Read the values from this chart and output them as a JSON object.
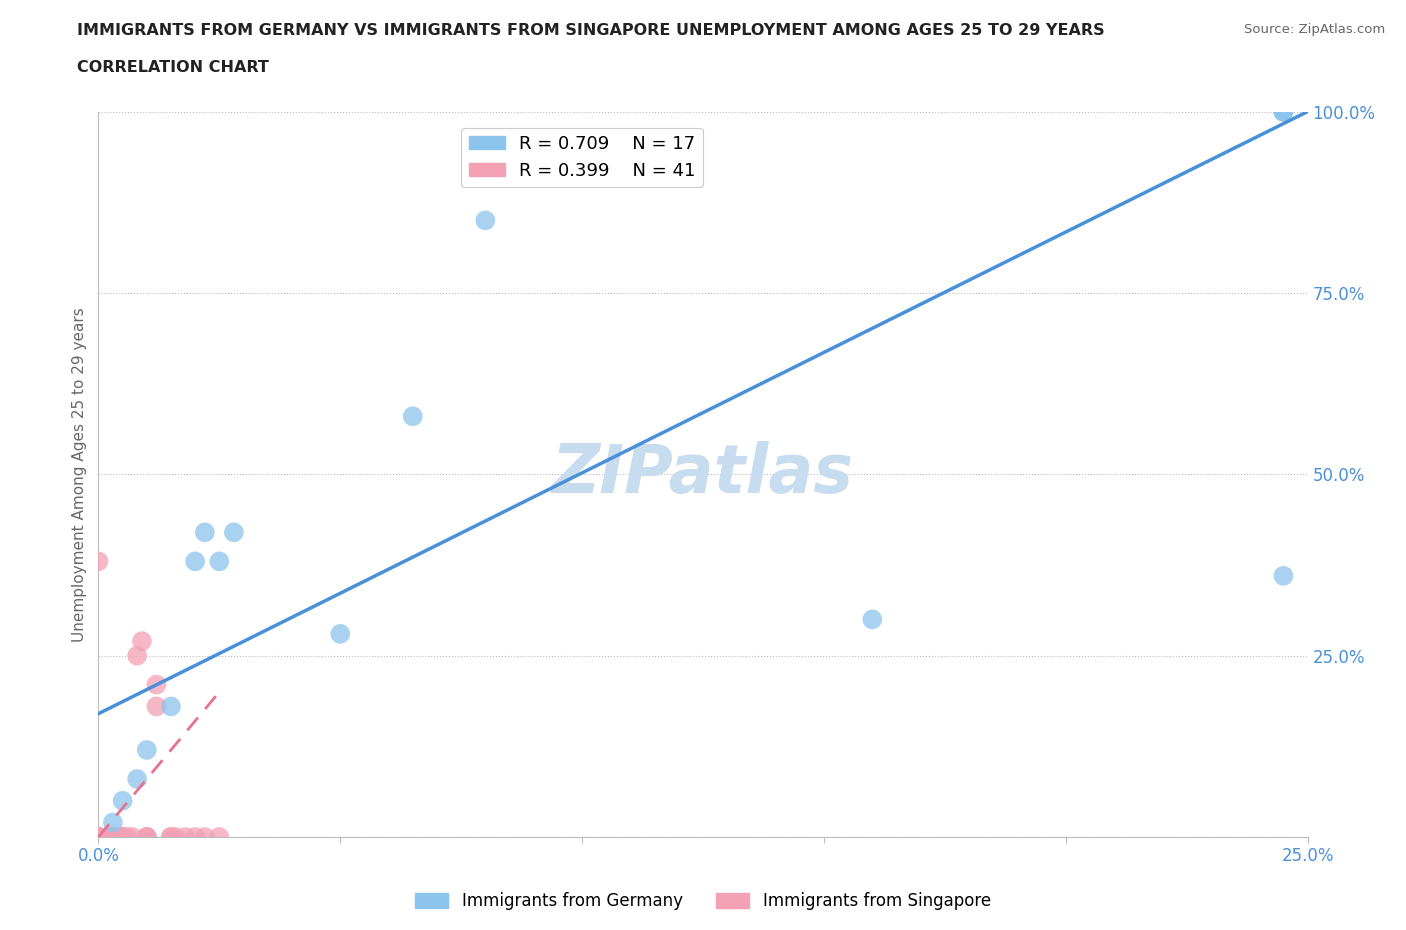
{
  "title_line1": "IMMIGRANTS FROM GERMANY VS IMMIGRANTS FROM SINGAPORE UNEMPLOYMENT AMONG AGES 25 TO 29 YEARS",
  "title_line2": "CORRELATION CHART",
  "source_text": "Source: ZipAtlas.com",
  "ylabel": "Unemployment Among Ages 25 to 29 years",
  "xlim": [
    0,
    0.25
  ],
  "ylim": [
    0,
    1.0
  ],
  "xticks": [
    0.0,
    0.05,
    0.1,
    0.15,
    0.2,
    0.25
  ],
  "yticks": [
    0.0,
    0.25,
    0.5,
    0.75,
    1.0
  ],
  "ytick_labels": [
    "",
    "25.0%",
    "50.0%",
    "75.0%",
    "100.0%"
  ],
  "xtick_labels": [
    "0.0%",
    "",
    "",
    "",
    "",
    "25.0%"
  ],
  "germany_R": 0.709,
  "germany_N": 17,
  "singapore_R": 0.399,
  "singapore_N": 41,
  "germany_color": "#8CC4ED",
  "singapore_color": "#F4A0B5",
  "germany_line_color": "#4A90D9",
  "singapore_line_color": "#E87090",
  "watermark": "ZIPatlas",
  "watermark_color": "#C8DCEF",
  "germany_x": [
    0.003,
    0.005,
    0.008,
    0.01,
    0.015,
    0.02,
    0.022,
    0.025,
    0.028,
    0.05,
    0.065,
    0.08,
    0.16,
    0.245,
    0.245,
    0.245,
    0.245
  ],
  "germany_y": [
    0.02,
    0.05,
    0.08,
    0.12,
    0.18,
    0.38,
    0.42,
    0.38,
    0.42,
    0.28,
    0.58,
    0.85,
    0.3,
    0.36,
    1.0,
    1.0,
    1.0
  ],
  "singapore_x": [
    0.0,
    0.0,
    0.0,
    0.0,
    0.0,
    0.0,
    0.0,
    0.0,
    0.0,
    0.0,
    0.0,
    0.0,
    0.0,
    0.0,
    0.0,
    0.002,
    0.002,
    0.003,
    0.003,
    0.003,
    0.004,
    0.005,
    0.005,
    0.005,
    0.005,
    0.006,
    0.007,
    0.008,
    0.009,
    0.01,
    0.01,
    0.01,
    0.012,
    0.012,
    0.015,
    0.015,
    0.016,
    0.018,
    0.02,
    0.022,
    0.025
  ],
  "singapore_y": [
    0.0,
    0.0,
    0.0,
    0.0,
    0.0,
    0.0,
    0.0,
    0.0,
    0.0,
    0.0,
    0.0,
    0.0,
    0.0,
    0.0,
    0.38,
    0.0,
    0.0,
    0.0,
    0.0,
    0.0,
    0.0,
    0.0,
    0.0,
    0.0,
    0.0,
    0.0,
    0.0,
    0.25,
    0.27,
    0.0,
    0.0,
    0.0,
    0.18,
    0.21,
    0.0,
    0.0,
    0.0,
    0.0,
    0.0,
    0.0,
    0.0
  ],
  "germany_line_x": [
    0.0,
    0.25
  ],
  "germany_line_y": [
    0.17,
    1.0
  ],
  "singapore_line_x": [
    0.0,
    0.025
  ],
  "singapore_line_y": [
    0.0,
    0.2
  ]
}
